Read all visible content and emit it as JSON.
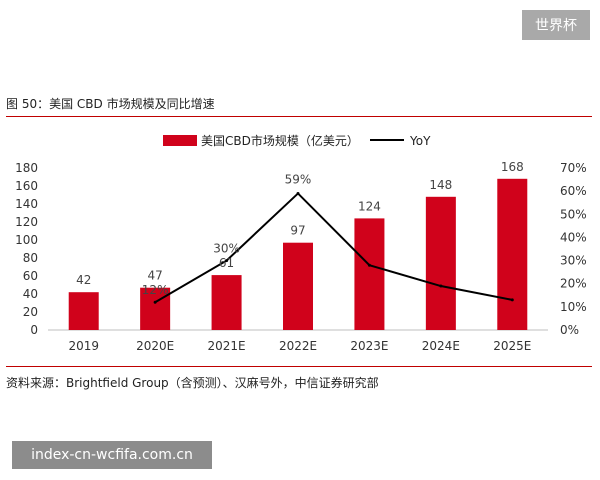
{
  "watermark_top": "世界杯",
  "figure_title": "图 50：美国 CBD 市场规模及同比增速",
  "source_note": "资料来源：Brightfield Group（含预测）、汉麻号外，中信证券研究部",
  "watermark_bottom": "index-cn-wcfifa.com.cn",
  "chart_data": {
    "type": "bar",
    "categories": [
      "2019",
      "2020E",
      "2021E",
      "2022E",
      "2023E",
      "2024E",
      "2025E"
    ],
    "series": [
      {
        "name": "美国CBD市场规模（亿美元）",
        "kind": "bar",
        "axis": "left",
        "values": [
          42,
          47,
          61,
          97,
          124,
          148,
          168
        ],
        "color": "#d0021b"
      },
      {
        "name": "YoY",
        "kind": "line",
        "axis": "right",
        "values": [
          null,
          12,
          30,
          59,
          28,
          19,
          13
        ],
        "color": "#000000"
      }
    ],
    "bar_labels": [
      "42",
      "47",
      "61",
      "97",
      "124",
      "148",
      "168"
    ],
    "line_labels": [
      "",
      "12%",
      "30%",
      "59%",
      "",
      "",
      ""
    ],
    "y_left": {
      "min": 0,
      "max": 180,
      "step": 20,
      "ticks": [
        "0",
        "20",
        "40",
        "60",
        "80",
        "100",
        "120",
        "140",
        "160",
        "180"
      ]
    },
    "y_right": {
      "min": 0,
      "max": 70,
      "step": 10,
      "ticks": [
        "0%",
        "10%",
        "20%",
        "30%",
        "40%",
        "50%",
        "60%",
        "70%"
      ]
    },
    "grid": false,
    "legend_position": "top"
  }
}
